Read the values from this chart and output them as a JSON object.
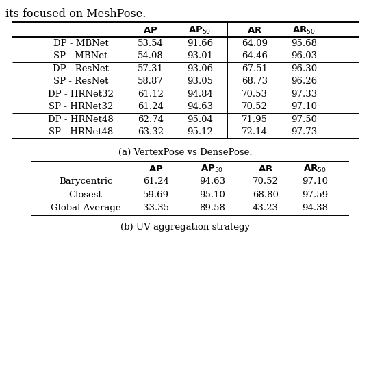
{
  "title_text": "its focused on MeshPose.",
  "table_a_caption": "(a) VertexPose vs DensePose.",
  "table_b_caption": "(b) UV aggregation strategy",
  "table_a_groups": [
    [
      [
        "DP - MBNet",
        "53.54",
        "91.66",
        "64.09",
        "95.68"
      ],
      [
        "SP - MBNet",
        "54.08",
        "93.01",
        "64.46",
        "96.03"
      ]
    ],
    [
      [
        "DP - ResNet",
        "57.31",
        "93.06",
        "67.51",
        "96.30"
      ],
      [
        "SP - ResNet",
        "58.87",
        "93.05",
        "68.73",
        "96.26"
      ]
    ],
    [
      [
        "DP - HRNet32",
        "61.12",
        "94.84",
        "70.53",
        "97.33"
      ],
      [
        "SP - HRNet32",
        "61.24",
        "94.63",
        "70.52",
        "97.10"
      ]
    ],
    [
      [
        "DP - HRNet48",
        "62.74",
        "95.04",
        "71.95",
        "97.50"
      ],
      [
        "SP - HRNet48",
        "63.32",
        "95.12",
        "72.14",
        "97.73"
      ]
    ]
  ],
  "table_b_rows": [
    [
      "Barycentric",
      "61.24",
      "94.63",
      "70.52",
      "97.10"
    ],
    [
      "Closest",
      "59.69",
      "95.10",
      "68.80",
      "97.59"
    ],
    [
      "Global Average",
      "33.35",
      "89.58",
      "43.23",
      "94.38"
    ]
  ],
  "figsize": [
    5.42,
    5.34
  ],
  "dpi": 100,
  "background": "#ffffff",
  "text_color": "#000000",
  "font_size": 9.5
}
